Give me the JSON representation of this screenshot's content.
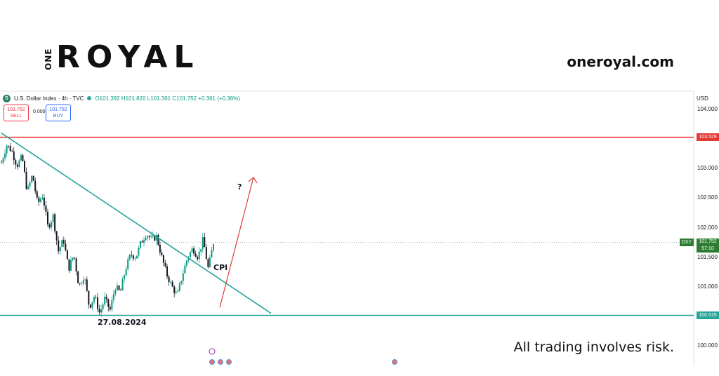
{
  "brand": {
    "one": "ONE",
    "royal": "ROYAL",
    "site": "oneroyal.com",
    "disclaimer": "All trading involves risk."
  },
  "header": {
    "symbol_icon": "S",
    "symbol": "U.S. Dollar Index · 4h · TVC",
    "status_color": "#26a69a",
    "open": "O101.392",
    "high": "H101.820",
    "low": "L101.361",
    "close": "C101.752",
    "change": "+0.361 (+0.36%)"
  },
  "trade": {
    "sell_price": "101.752",
    "sell_label": "SELL",
    "spread": "0.000",
    "buy_price": "101.752",
    "buy_label": "BUY"
  },
  "chart_data": {
    "type": "candlestick",
    "symbol": "DXY",
    "currency": "USD",
    "timeframe": "4h",
    "ylim": [
      99.9,
      104.15
    ],
    "y_ticks": [
      "104.000",
      "103.000",
      "102.500",
      "102.000",
      "101.500",
      "101.000",
      "100.000"
    ],
    "last_price": "101.752",
    "countdown": "57:10",
    "axis_tag": "DXY",
    "close_path": [
      103.1,
      103.4,
      103.3,
      103.05,
      103.2,
      102.6,
      102.9,
      102.4,
      102.55,
      102.0,
      102.2,
      101.6,
      101.8,
      101.3,
      101.55,
      101.0,
      101.2,
      100.65,
      100.85,
      100.55,
      100.8,
      100.6,
      101.0,
      100.9,
      101.3,
      101.55,
      101.5,
      101.75,
      101.9,
      101.8,
      101.85,
      101.5,
      101.2,
      101.0,
      100.85,
      101.2,
      101.5,
      101.65,
      101.5,
      101.8,
      101.3,
      101.75
    ],
    "colors": {
      "up": "#089981",
      "down": "#131722",
      "resistance": "#e53935",
      "support": "#26a69a",
      "trendline": "#26a69a",
      "arrow": "#e53935"
    },
    "levels": [
      {
        "name": "resistance",
        "value": 103.529,
        "label": "103.529"
      },
      {
        "name": "support",
        "value": 100.515,
        "label": "100.515"
      }
    ],
    "trendline": {
      "from": [
        0,
        103.6
      ],
      "to": [
        1.0,
        100.55
      ]
    },
    "projection_arrow": {
      "from": [
        0.0,
        100.65
      ],
      "to": [
        1.0,
        102.85
      ]
    },
    "annotations": {
      "date": "27.08.2024",
      "event": "CPI",
      "question": "?"
    },
    "event_icon": "calendar-flag-icon"
  }
}
